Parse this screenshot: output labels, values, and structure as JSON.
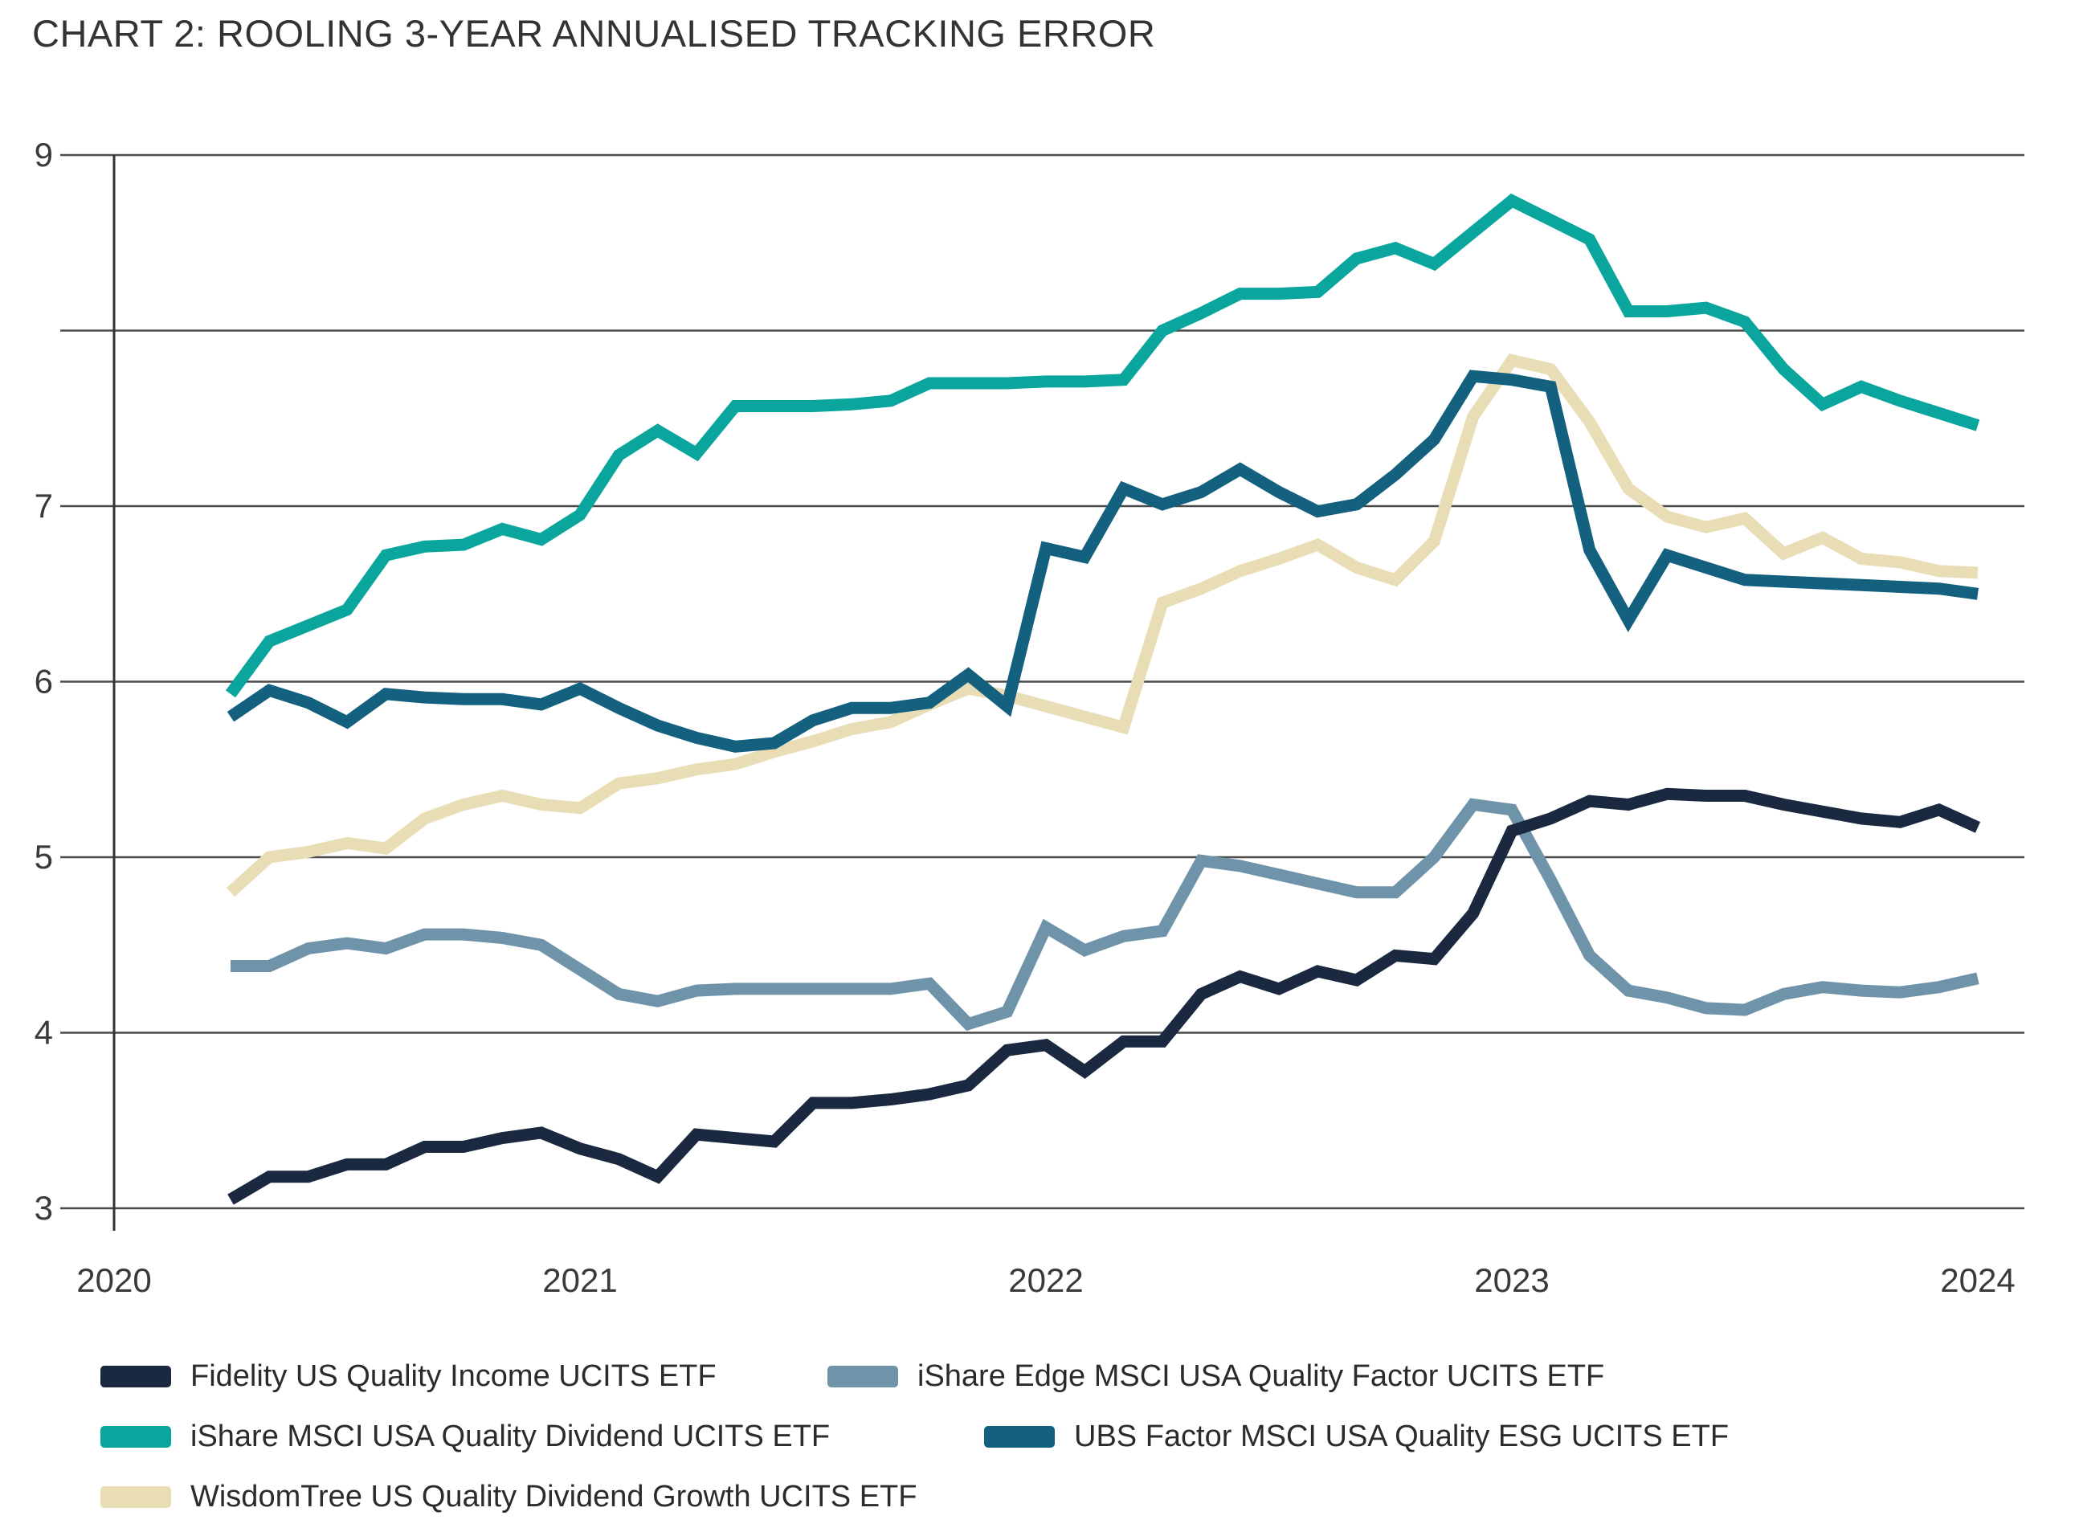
{
  "title": "CHART 2: ROOLING 3-YEAR ANNUALISED TRACKING ERROR",
  "chart_data": {
    "type": "line",
    "title": "CHART 2: ROOLING 3-YEAR ANNUALISED TRACKING ERROR",
    "xlabel": "",
    "ylabel": "",
    "x_start": 2020.25,
    "x_step_months": 1,
    "x_start_label": "Apr 2020",
    "x_end_label": "Jan 2024",
    "ylim": [
      3,
      9
    ],
    "grid": true,
    "legend_position": "bottom-left",
    "yticks": [
      {
        "value": 9,
        "label": "9"
      },
      {
        "value": 8,
        "label": ""
      },
      {
        "value": 7,
        "label": "7"
      },
      {
        "value": 6,
        "label": "6"
      },
      {
        "value": 5,
        "label": "5"
      },
      {
        "value": 4,
        "label": "4"
      },
      {
        "value": 3,
        "label": "3"
      }
    ],
    "xticks": [
      {
        "value": 2020,
        "label": "2020"
      },
      {
        "value": 2021,
        "label": "2021"
      },
      {
        "value": 2022,
        "label": "2022"
      },
      {
        "value": 2023,
        "label": "2023"
      },
      {
        "value": 2024,
        "label": "2024"
      }
    ],
    "series": [
      {
        "name": "iShare Edge MSCI USA Quality Factor UCITS ETF",
        "color": "#6f94a9",
        "values": [
          4.38,
          4.38,
          4.48,
          4.51,
          4.48,
          4.56,
          4.56,
          4.54,
          4.5,
          4.36,
          4.22,
          4.18,
          4.24,
          4.25,
          4.25,
          4.25,
          4.25,
          4.25,
          4.28,
          4.05,
          4.12,
          4.6,
          4.47,
          4.55,
          4.58,
          4.98,
          4.95,
          4.9,
          4.85,
          4.8,
          4.8,
          5.0,
          5.3,
          5.27,
          4.87,
          4.44,
          4.24,
          4.2,
          4.14,
          4.13,
          4.22,
          4.26,
          4.24,
          4.23,
          4.26,
          4.31
        ]
      },
      {
        "name": "WisdomTree US Quality Dividend Growth UCITS ETF",
        "color": "#e8ddb4",
        "values": [
          4.8,
          5.0,
          5.03,
          5.08,
          5.05,
          5.22,
          5.3,
          5.35,
          5.3,
          5.28,
          5.42,
          5.45,
          5.5,
          5.53,
          5.6,
          5.66,
          5.73,
          5.77,
          5.87,
          5.96,
          5.92,
          5.86,
          5.8,
          5.74,
          6.45,
          6.53,
          6.63,
          6.7,
          6.78,
          6.65,
          6.58,
          6.8,
          7.51,
          7.83,
          7.78,
          7.48,
          7.1,
          6.94,
          6.88,
          6.93,
          6.73,
          6.82,
          6.7,
          6.68,
          6.63,
          6.62
        ]
      },
      {
        "name": "UBS Factor MSCI USA Quality ESG UCITS ETF",
        "color": "#14607f",
        "values": [
          5.8,
          5.95,
          5.88,
          5.77,
          5.93,
          5.91,
          5.9,
          5.9,
          5.87,
          5.96,
          5.85,
          5.75,
          5.68,
          5.63,
          5.65,
          5.78,
          5.85,
          5.85,
          5.88,
          6.04,
          5.86,
          6.76,
          6.71,
          7.1,
          7.01,
          7.08,
          7.21,
          7.08,
          6.97,
          7.01,
          7.18,
          7.38,
          7.74,
          7.72,
          7.68,
          6.75,
          6.35,
          6.72,
          6.65,
          6.58,
          6.57,
          6.56,
          6.55,
          6.54,
          6.53,
          6.5
        ]
      },
      {
        "name": "iShare MSCI USA Quality Dividend UCITS ETF",
        "color": "#0aa69d",
        "values": [
          5.93,
          6.23,
          6.32,
          6.41,
          6.72,
          6.77,
          6.78,
          6.87,
          6.81,
          6.95,
          7.29,
          7.43,
          7.3,
          7.57,
          7.57,
          7.57,
          7.58,
          7.6,
          7.7,
          7.7,
          7.7,
          7.71,
          7.71,
          7.72,
          8.0,
          8.1,
          8.21,
          8.21,
          8.22,
          8.41,
          8.47,
          8.38,
          8.56,
          8.74,
          8.63,
          8.52,
          8.11,
          8.11,
          8.13,
          8.05,
          7.78,
          7.58,
          7.68,
          7.6,
          7.53,
          7.46
        ]
      },
      {
        "name": "Fidelity US Quality Income UCITS ETF",
        "color": "#1a2940",
        "values": [
          3.05,
          3.18,
          3.18,
          3.25,
          3.25,
          3.35,
          3.35,
          3.4,
          3.43,
          3.34,
          3.28,
          3.18,
          3.42,
          3.4,
          3.38,
          3.6,
          3.6,
          3.62,
          3.65,
          3.7,
          3.9,
          3.93,
          3.78,
          3.95,
          3.95,
          4.22,
          4.32,
          4.25,
          4.35,
          4.3,
          4.44,
          4.42,
          4.68,
          5.15,
          5.22,
          5.32,
          5.3,
          5.36,
          5.35,
          5.35,
          5.3,
          5.26,
          5.22,
          5.2,
          5.27,
          5.17
        ]
      }
    ]
  },
  "legend": {
    "items": [
      {
        "label": "Fidelity US Quality Income UCITS ETF",
        "color": "#1a2940"
      },
      {
        "label": "iShare Edge MSCI USA Quality Factor UCITS ETF",
        "color": "#6f94a9"
      },
      {
        "label": "iShare MSCI USA Quality Dividend UCITS ETF",
        "color": "#0aa69d"
      },
      {
        "label": "UBS Factor MSCI USA Quality ESG UCITS ETF",
        "color": "#14607f"
      },
      {
        "label": "WisdomTree US Quality Dividend Growth UCITS ETF",
        "color": "#e8ddb4"
      }
    ]
  }
}
